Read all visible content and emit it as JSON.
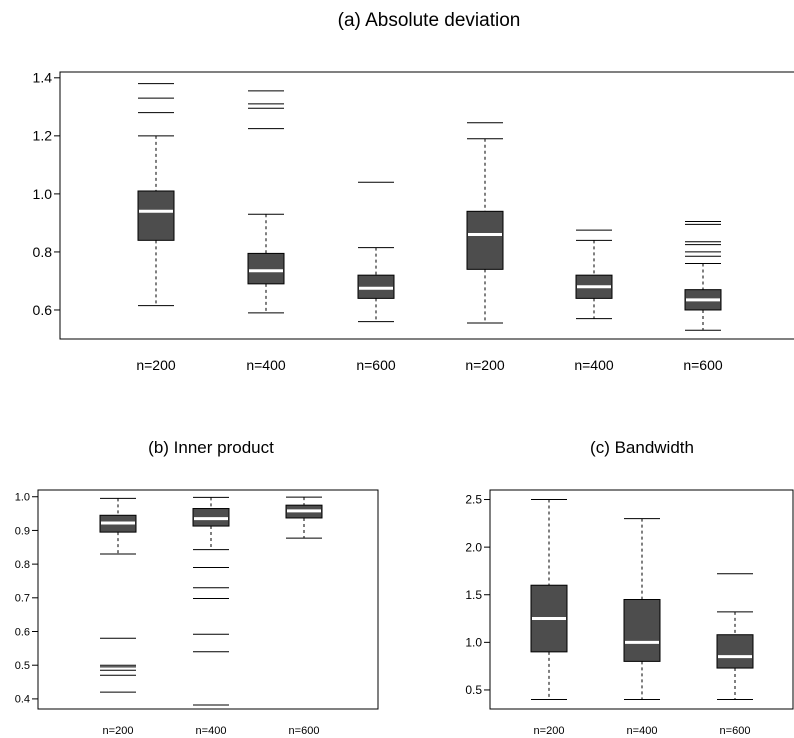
{
  "chart_data": [
    {
      "type": "boxplot",
      "title": "(a) Absolute deviation",
      "xlabel": "",
      "ylabel": "",
      "ylim": [
        0.5,
        1.42
      ],
      "yticks": [
        "0.6",
        "0.8",
        "1.0",
        "1.2",
        "1.4"
      ],
      "grid": false,
      "fill_color": "#4d4d4d",
      "median_color": "#ffffff",
      "categories": [
        "n=200",
        "n=400",
        "n=600",
        "n=200",
        "n=400",
        "n=600"
      ],
      "boxes": [
        {
          "whisker_low": 0.615,
          "q1": 0.84,
          "median": 0.94,
          "q3": 1.01,
          "whisker_high": 1.2,
          "outliers": [
            1.28,
            1.33,
            1.38
          ]
        },
        {
          "whisker_low": 0.59,
          "q1": 0.69,
          "median": 0.735,
          "q3": 0.795,
          "whisker_high": 0.93,
          "outliers": [
            1.225,
            1.295,
            1.31,
            1.355
          ]
        },
        {
          "whisker_low": 0.56,
          "q1": 0.64,
          "median": 0.675,
          "q3": 0.72,
          "whisker_high": 0.815,
          "outliers": [
            1.04
          ]
        },
        {
          "whisker_low": 0.555,
          "q1": 0.74,
          "median": 0.86,
          "q3": 0.94,
          "whisker_high": 1.19,
          "outliers": [
            1.245
          ]
        },
        {
          "whisker_low": 0.57,
          "q1": 0.64,
          "median": 0.68,
          "q3": 0.72,
          "whisker_high": 0.84,
          "outliers": [
            0.875
          ]
        },
        {
          "whisker_low": 0.53,
          "q1": 0.6,
          "median": 0.635,
          "q3": 0.67,
          "whisker_high": 0.76,
          "outliers": [
            0.785,
            0.8,
            0.825,
            0.835,
            0.895,
            0.905
          ]
        }
      ]
    },
    {
      "type": "boxplot",
      "title": "(b) Inner product",
      "xlabel": "",
      "ylabel": "",
      "ylim": [
        0.37,
        1.02
      ],
      "yticks": [
        "0.4",
        "0.5",
        "0.6",
        "0.7",
        "0.8",
        "0.9",
        "1.0"
      ],
      "grid": false,
      "fill_color": "#4d4d4d",
      "median_color": "#ffffff",
      "categories": [
        "n=200",
        "n=400",
        "n=600"
      ],
      "boxes": [
        {
          "whisker_low": 0.83,
          "q1": 0.895,
          "median": 0.922,
          "q3": 0.945,
          "whisker_high": 0.995,
          "outliers": [
            0.42,
            0.47,
            0.485,
            0.495,
            0.5,
            0.58
          ]
        },
        {
          "whisker_low": 0.843,
          "q1": 0.913,
          "median": 0.935,
          "q3": 0.965,
          "whisker_high": 0.998,
          "outliers": [
            0.382,
            0.54,
            0.592,
            0.698,
            0.73,
            0.79
          ]
        },
        {
          "whisker_low": 0.877,
          "q1": 0.937,
          "median": 0.958,
          "q3": 0.975,
          "whisker_high": 0.999,
          "outliers": []
        }
      ]
    },
    {
      "type": "boxplot",
      "title": "(c) Bandwidth",
      "xlabel": "",
      "ylabel": "",
      "ylim": [
        0.3,
        2.6
      ],
      "yticks": [
        "0.5",
        "1.0",
        "1.5",
        "2.0",
        "2.5"
      ],
      "grid": false,
      "fill_color": "#4d4d4d",
      "median_color": "#ffffff",
      "categories": [
        "n=200",
        "n=400",
        "n=600"
      ],
      "boxes": [
        {
          "whisker_low": 0.4,
          "q1": 0.9,
          "median": 1.25,
          "q3": 1.6,
          "whisker_high": 2.5,
          "outliers": []
        },
        {
          "whisker_low": 0.4,
          "q1": 0.8,
          "median": 1.0,
          "q3": 1.45,
          "whisker_high": 2.3,
          "outliers": []
        },
        {
          "whisker_low": 0.4,
          "q1": 0.73,
          "median": 0.85,
          "q3": 1.08,
          "whisker_high": 1.32,
          "outliers": [
            1.72
          ]
        }
      ]
    }
  ]
}
